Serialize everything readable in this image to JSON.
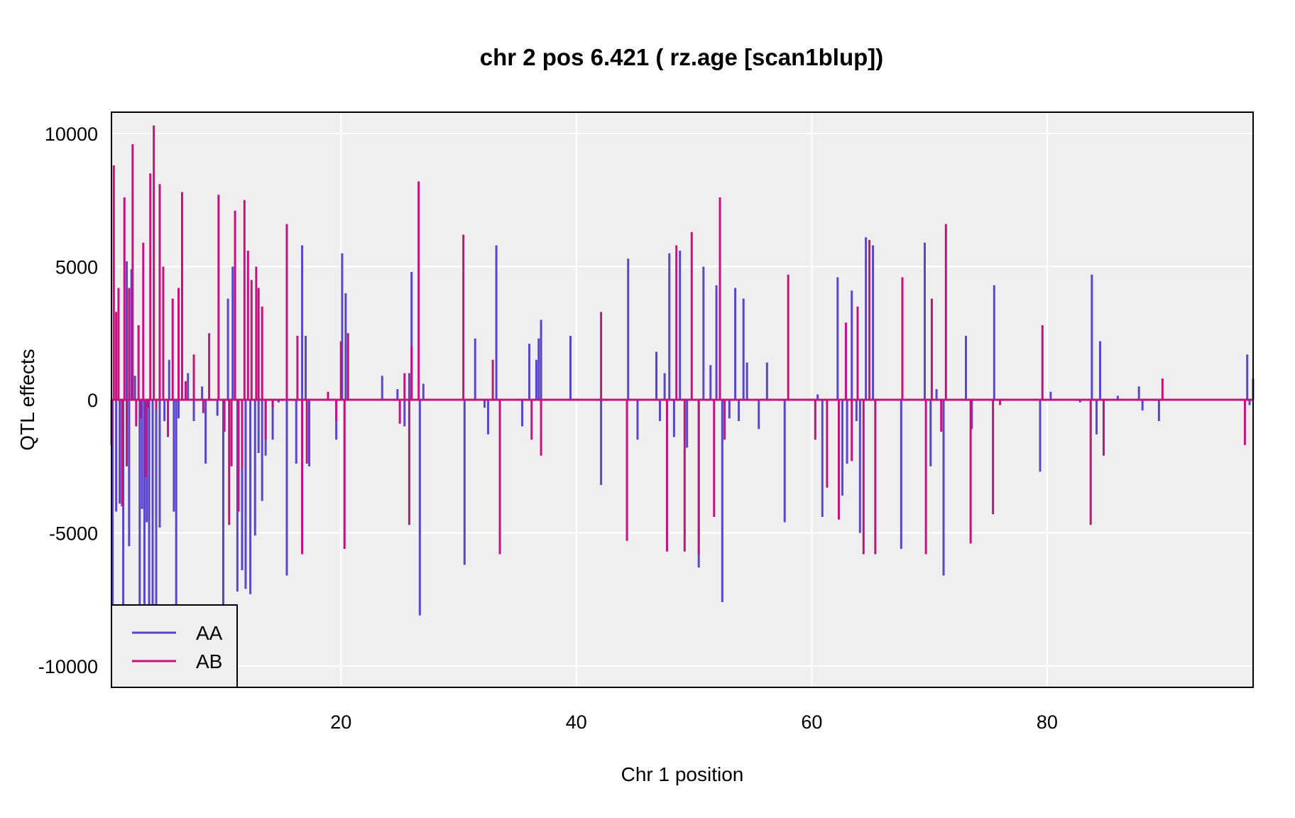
{
  "chart_data": {
    "type": "line",
    "title": "chr 2 pos 6.421 ( rz.age  [scan1blup])",
    "xlabel": "Chr 1 position",
    "ylabel": "QTL effects",
    "xlim": [
      0.5,
      97.5
    ],
    "ylim": [
      -10800,
      10800
    ],
    "xticks": [
      20,
      40,
      60,
      80
    ],
    "yticks": [
      -10000,
      -5000,
      0,
      5000,
      10000
    ],
    "xtick_labels": [
      "20",
      "40",
      "60",
      "80"
    ],
    "ytick_labels": [
      "-10000",
      "-5000",
      "0",
      "5000",
      "10000"
    ],
    "grid": true,
    "legend_position": "bottom-left",
    "colors": {
      "AA": "#5a45cc",
      "AB": "#c4127f",
      "panel": "#efefef",
      "grid": "#ffffff"
    },
    "series": [
      {
        "name": "AA",
        "color": "#5a45cc",
        "spikes": [
          [
            0.6,
            -7800
          ],
          [
            0.9,
            -4200
          ],
          [
            1.2,
            -3900
          ],
          [
            1.5,
            -7800
          ],
          [
            1.8,
            5200
          ],
          [
            2.0,
            -5500
          ],
          [
            2.2,
            4900
          ],
          [
            2.5,
            900
          ],
          [
            2.9,
            -7800
          ],
          [
            3.1,
            -4100
          ],
          [
            3.3,
            -7800
          ],
          [
            3.5,
            -4600
          ],
          [
            3.7,
            -7800
          ],
          [
            4.0,
            -7800
          ],
          [
            4.3,
            -7800
          ],
          [
            4.6,
            -4800
          ],
          [
            5.0,
            -800
          ],
          [
            5.4,
            1500
          ],
          [
            5.8,
            -4200
          ],
          [
            6.0,
            -7800
          ],
          [
            6.2,
            -700
          ],
          [
            6.5,
            200
          ],
          [
            7.0,
            1000
          ],
          [
            7.5,
            -800
          ],
          [
            8.2,
            500
          ],
          [
            8.5,
            -2400
          ],
          [
            9.5,
            -600
          ],
          [
            10.0,
            -7800
          ],
          [
            10.4,
            3800
          ],
          [
            10.8,
            5000
          ],
          [
            11.2,
            -7200
          ],
          [
            11.6,
            -6400
          ],
          [
            11.9,
            -7100
          ],
          [
            12.3,
            -7300
          ],
          [
            12.7,
            -5100
          ],
          [
            13.0,
            -2000
          ],
          [
            13.3,
            -3800
          ],
          [
            13.6,
            -2100
          ],
          [
            14.2,
            -1500
          ],
          [
            14.7,
            -100
          ],
          [
            15.4,
            -6600
          ],
          [
            16.2,
            -2400
          ],
          [
            16.7,
            5800
          ],
          [
            17.0,
            2400
          ],
          [
            17.3,
            -2500
          ],
          [
            19.6,
            -1500
          ],
          [
            20.1,
            5500
          ],
          [
            20.4,
            4000
          ],
          [
            23.5,
            900
          ],
          [
            24.8,
            400
          ],
          [
            25.4,
            -1000
          ],
          [
            25.8,
            1000
          ],
          [
            26.0,
            4800
          ],
          [
            26.7,
            -8100
          ],
          [
            27.0,
            600
          ],
          [
            30.5,
            -6200
          ],
          [
            31.4,
            2300
          ],
          [
            32.2,
            -300
          ],
          [
            32.5,
            -1300
          ],
          [
            33.2,
            5800
          ],
          [
            35.4,
            -1000
          ],
          [
            36.0,
            2100
          ],
          [
            36.6,
            1500
          ],
          [
            36.8,
            2300
          ],
          [
            37.0,
            3000
          ],
          [
            39.5,
            2400
          ],
          [
            42.1,
            -3200
          ],
          [
            44.4,
            5300
          ],
          [
            45.2,
            -1500
          ],
          [
            46.8,
            1800
          ],
          [
            47.1,
            -800
          ],
          [
            47.5,
            1000
          ],
          [
            47.9,
            5500
          ],
          [
            48.3,
            -1400
          ],
          [
            48.8,
            5600
          ],
          [
            49.4,
            -1800
          ],
          [
            50.4,
            -6300
          ],
          [
            50.8,
            5000
          ],
          [
            51.4,
            1300
          ],
          [
            51.9,
            4300
          ],
          [
            52.4,
            -7600
          ],
          [
            53.0,
            -700
          ],
          [
            53.5,
            4200
          ],
          [
            53.8,
            -800
          ],
          [
            54.2,
            3800
          ],
          [
            54.5,
            1400
          ],
          [
            55.5,
            -1100
          ],
          [
            56.2,
            1400
          ],
          [
            57.7,
            -4600
          ],
          [
            60.5,
            200
          ],
          [
            60.9,
            -4400
          ],
          [
            62.2,
            4600
          ],
          [
            62.6,
            -3600
          ],
          [
            63.0,
            -2400
          ],
          [
            63.4,
            4100
          ],
          [
            63.8,
            -800
          ],
          [
            64.1,
            -5000
          ],
          [
            64.6,
            6100
          ],
          [
            65.2,
            5800
          ],
          [
            67.6,
            -5600
          ],
          [
            69.6,
            5900
          ],
          [
            70.1,
            -2500
          ],
          [
            70.6,
            400
          ],
          [
            71.2,
            -6600
          ],
          [
            73.1,
            2400
          ],
          [
            73.6,
            -1100
          ],
          [
            75.5,
            4300
          ],
          [
            79.4,
            -2700
          ],
          [
            80.3,
            300
          ],
          [
            82.8,
            -100
          ],
          [
            83.8,
            4700
          ],
          [
            84.2,
            -1300
          ],
          [
            84.5,
            2200
          ],
          [
            86.0,
            150
          ],
          [
            87.8,
            500
          ],
          [
            88.1,
            -400
          ],
          [
            89.5,
            -800
          ],
          [
            97.0,
            1700
          ],
          [
            97.2,
            -200
          ],
          [
            97.5,
            800
          ]
        ]
      },
      {
        "name": "AB",
        "color": "#c4127f",
        "spikes": [
          [
            0.5,
            -1700
          ],
          [
            0.7,
            8800
          ],
          [
            0.9,
            3300
          ],
          [
            1.1,
            4200
          ],
          [
            1.4,
            -4000
          ],
          [
            1.6,
            7600
          ],
          [
            1.8,
            -2500
          ],
          [
            2.0,
            4200
          ],
          [
            2.3,
            9600
          ],
          [
            2.6,
            -1000
          ],
          [
            2.8,
            2800
          ],
          [
            3.0,
            -700
          ],
          [
            3.2,
            5900
          ],
          [
            3.4,
            -2900
          ],
          [
            3.6,
            -300
          ],
          [
            3.8,
            8500
          ],
          [
            4.1,
            10300
          ],
          [
            4.3,
            -400
          ],
          [
            4.6,
            8100
          ],
          [
            4.9,
            5000
          ],
          [
            5.3,
            -1400
          ],
          [
            5.7,
            3800
          ],
          [
            6.2,
            4200
          ],
          [
            6.5,
            7800
          ],
          [
            6.8,
            700
          ],
          [
            7.5,
            1700
          ],
          [
            8.3,
            -500
          ],
          [
            8.8,
            2500
          ],
          [
            9.6,
            7700
          ],
          [
            10.1,
            -1200
          ],
          [
            10.5,
            -4700
          ],
          [
            10.7,
            -2500
          ],
          [
            11.0,
            7100
          ],
          [
            11.3,
            -4200
          ],
          [
            11.6,
            -2600
          ],
          [
            11.8,
            7500
          ],
          [
            12.1,
            5600
          ],
          [
            12.4,
            4500
          ],
          [
            12.8,
            5000
          ],
          [
            13.0,
            4200
          ],
          [
            13.3,
            3500
          ],
          [
            13.6,
            -1500
          ],
          [
            14.2,
            -300
          ],
          [
            15.4,
            6600
          ],
          [
            16.3,
            2400
          ],
          [
            16.7,
            -5800
          ],
          [
            17.1,
            -2400
          ],
          [
            18.9,
            300
          ],
          [
            19.6,
            -800
          ],
          [
            20.0,
            2200
          ],
          [
            20.3,
            -5600
          ],
          [
            20.6,
            2500
          ],
          [
            25.0,
            -900
          ],
          [
            25.4,
            1000
          ],
          [
            25.8,
            -4700
          ],
          [
            26.0,
            2000
          ],
          [
            26.6,
            8200
          ],
          [
            30.4,
            6200
          ],
          [
            33.5,
            -5800
          ],
          [
            32.9,
            1500
          ],
          [
            36.2,
            -1500
          ],
          [
            37.0,
            -2100
          ],
          [
            42.1,
            3300
          ],
          [
            44.3,
            -5300
          ],
          [
            47.7,
            -5700
          ],
          [
            48.5,
            5800
          ],
          [
            49.2,
            -5700
          ],
          [
            49.8,
            6300
          ],
          [
            50.4,
            -5800
          ],
          [
            51.7,
            -4400
          ],
          [
            52.2,
            7600
          ],
          [
            52.6,
            -1500
          ],
          [
            58.0,
            4700
          ],
          [
            60.3,
            -1500
          ],
          [
            61.3,
            -3300
          ],
          [
            62.3,
            -4500
          ],
          [
            62.9,
            2900
          ],
          [
            63.4,
            -2300
          ],
          [
            63.9,
            3500
          ],
          [
            64.4,
            -5800
          ],
          [
            64.9,
            6000
          ],
          [
            65.4,
            -5800
          ],
          [
            67.7,
            4600
          ],
          [
            69.7,
            -5800
          ],
          [
            70.2,
            3800
          ],
          [
            71.4,
            6600
          ],
          [
            71.0,
            -1200
          ],
          [
            73.5,
            -5400
          ],
          [
            75.4,
            -4300
          ],
          [
            76.0,
            -200
          ],
          [
            79.6,
            2800
          ],
          [
            83.7,
            -4700
          ],
          [
            84.8,
            -2100
          ],
          [
            89.8,
            800
          ],
          [
            96.8,
            -1700
          ]
        ]
      }
    ]
  }
}
